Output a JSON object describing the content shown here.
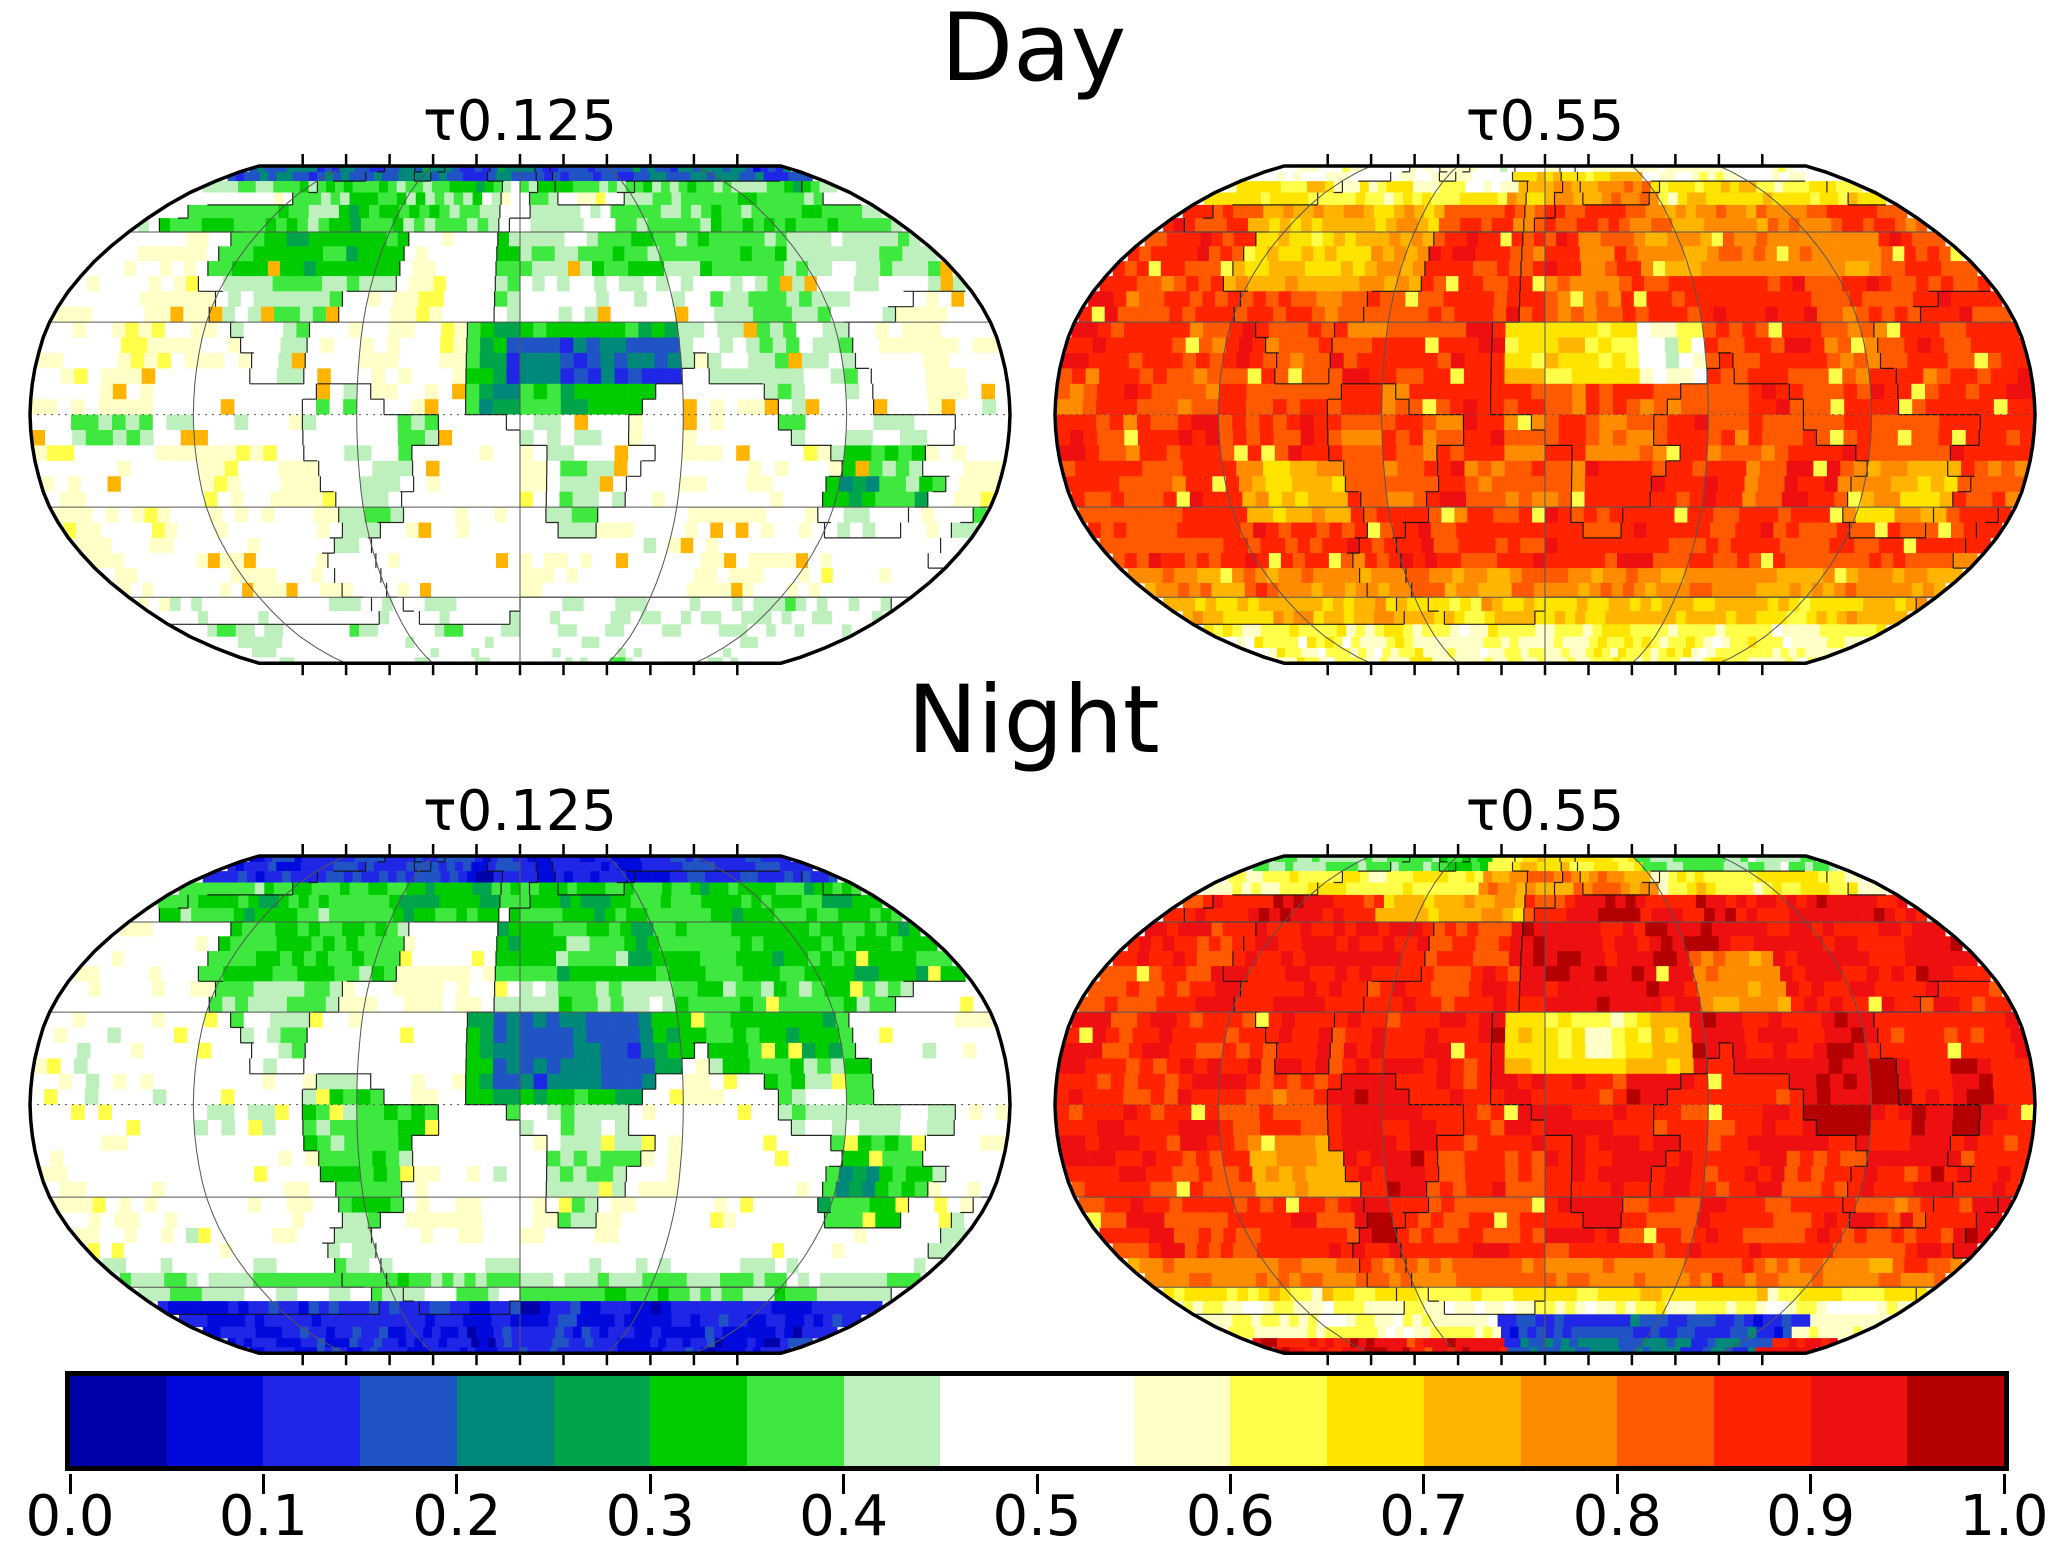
{
  "figure": {
    "day_title": "Day",
    "night_title": "Night"
  },
  "colorbar": {
    "ticks": [
      "0.0",
      "0.1",
      "0.2",
      "0.3",
      "0.4",
      "0.5",
      "0.6",
      "0.7",
      "0.8",
      "0.9",
      "1.0"
    ],
    "palette": [
      "#0000AA",
      "#000ADC",
      "#2026E6",
      "#2054C4",
      "#00887A",
      "#00A44B",
      "#00CC00",
      "#3EE83E",
      "#BEF0BE",
      "#FFFFFF",
      "#FFFFFF",
      "#FFFFC8",
      "#FFFF4A",
      "#FFE400",
      "#FFB400",
      "#FF8C00",
      "#FF5A00",
      "#FF2300",
      "#EE1010",
      "#B40000"
    ],
    "border_color": "#000000",
    "value_min": 0.0,
    "value_max": 1.0,
    "segment_width_value": 0.05
  },
  "chart_data": {
    "type": "heatmap",
    "projection": "robinson",
    "value_range": [
      0,
      1
    ],
    "grid": {
      "cols": 72,
      "rows": 36,
      "parallels": [
        -60,
        -30,
        0,
        30,
        60
      ],
      "meridians": [
        -120,
        -60,
        0,
        60,
        120
      ],
      "pole_tick_step_deg": 30
    },
    "robinson_x": [
      1.0,
      0.9986,
      0.9954,
      0.99,
      0.9822,
      0.973,
      0.96,
      0.9427,
      0.9216,
      0.8962,
      0.8679,
      0.835,
      0.7986,
      0.7597,
      0.7186,
      0.6732,
      0.6213,
      0.5722,
      0.5322
    ],
    "robinson_y": [
      0.0,
      0.062,
      0.124,
      0.186,
      0.248,
      0.31,
      0.372,
      0.434,
      0.4958,
      0.5571,
      0.6176,
      0.6769,
      0.7346,
      0.7903,
      0.8435,
      0.8936,
      0.9394,
      0.9761,
      1.0
    ],
    "land_mask": [
      "000000000110011100010000000000000000",
      "000000111111111110010000111111111100",
      "011111111111111110111111111111111111",
      "000001111111100001111111111111111111",
      "000001111111100001111111111111111111",
      "000000111110000001111111111111111000",
      "000000011100000011111111111111000000",
      "000000001100000011111111011111100000",
      "000000000011100011111110000111100000",
      "000000000011111000111100000011111100",
      "000000000011110000011110000000111000",
      "000000000001110000011100000001111100",
      "000000000001100000011000000000111001",
      "000000000011000000000000000000000001",
      "000000000011000000000000000000000000",
      "000000000001100000111111111111111111",
      "111111111111111111111111111111111111",
      "111111111111111111111111111111111111"
    ],
    "panels": [
      {
        "id": "day-tau0125",
        "row": "Day",
        "title": "τ0.125",
        "seed": 11,
        "ocean_base": 0.52,
        "land_base": 0.45,
        "jitter": 0.18,
        "speck": {
          "t": 0.966,
          "v": 0.71,
          "lat": [
            -58,
            50
          ]
        },
        "zones": [
          [
            82,
            90,
            -180,
            180,
            0,
            0.13,
            0.88
          ],
          [
            76,
            82,
            -180,
            180,
            0,
            0.3,
            0.55
          ],
          [
            45,
            80,
            -180,
            -18,
            1,
            0.33,
            0.7
          ],
          [
            45,
            80,
            -18,
            180,
            1,
            0.37,
            0.55
          ],
          [
            55,
            70,
            -5,
            40,
            1,
            0.48,
            0.5
          ],
          [
            0,
            30,
            -20,
            62,
            1,
            0.28,
            0.75
          ],
          [
            8,
            24,
            -5,
            58,
            1,
            0.14,
            0.8
          ],
          [
            5,
            38,
            62,
            125,
            1,
            0.38,
            0.55
          ],
          [
            15,
            45,
            -180,
            180,
            2,
            0.59,
            0.5
          ],
          [
            -42,
            -12,
            -180,
            180,
            2,
            0.57,
            0.45
          ],
          [
            -12,
            2,
            -180,
            -95,
            0,
            0.38,
            0.6
          ],
          [
            -30,
            -11,
            113,
            155,
            1,
            0.31,
            0.7
          ],
          [
            -27,
            -19,
            122,
            140,
            1,
            0.22,
            0.45
          ],
          [
            -58,
            -43,
            -180,
            180,
            0,
            0.55,
            0.35
          ],
          [
            -70,
            -58,
            -180,
            180,
            0,
            0.46,
            0.55
          ],
          [
            -90,
            -70,
            -180,
            180,
            0,
            0.47,
            0.7
          ]
        ]
      },
      {
        "id": "day-tau055",
        "row": "Day",
        "title": "τ0.55",
        "seed": 22,
        "ocean_base": 0.86,
        "land_base": 0.84,
        "jitter": 0.16,
        "speck": {
          "t": 0.968,
          "v": 0.63,
          "lat": [
            -55,
            60
          ]
        },
        "zones": [
          [
            80,
            90,
            -180,
            180,
            0,
            0.5,
            0.88
          ],
          [
            70,
            80,
            -180,
            180,
            0,
            0.55,
            0.65
          ],
          [
            70,
            85,
            -20,
            60,
            0,
            0.85,
            0.5
          ],
          [
            74,
            90,
            -75,
            -15,
            1,
            0.49,
            0.6
          ],
          [
            40,
            70,
            -140,
            -50,
            1,
            0.66,
            0.6
          ],
          [
            45,
            70,
            40,
            140,
            1,
            0.7,
            0.5
          ],
          [
            50,
            68,
            -10,
            40,
            2,
            0.8,
            0.4
          ],
          [
            12,
            32,
            -15,
            35,
            1,
            0.6,
            0.65
          ],
          [
            12,
            30,
            35,
            60,
            1,
            0.47,
            0.7
          ],
          [
            14,
            26,
            44,
            56,
            1,
            0.33,
            0.45
          ],
          [
            25,
            45,
            -75,
            -30,
            2,
            0.73,
            0.4
          ],
          [
            -35,
            -15,
            -115,
            -75,
            2,
            0.63,
            0.55
          ],
          [
            -35,
            -14,
            110,
            157,
            0,
            0.62,
            0.5
          ],
          [
            -15,
            10,
            90,
            165,
            0,
            0.92,
            0.5
          ],
          [
            -62,
            -48,
            -180,
            180,
            0,
            0.7,
            0.55
          ],
          [
            -72,
            -62,
            -180,
            180,
            0,
            0.58,
            0.55
          ],
          [
            -90,
            -72,
            -180,
            180,
            0,
            0.53,
            0.75
          ]
        ]
      },
      {
        "id": "night-tau0125",
        "row": "Night",
        "title": "τ0.125",
        "seed": 33,
        "ocean_base": 0.51,
        "land_base": 0.42,
        "jitter": 0.15,
        "speck": {
          "t": 0.97,
          "v": 0.62,
          "lat": [
            -50,
            50
          ]
        },
        "zones": [
          [
            76,
            90,
            -180,
            180,
            0,
            0.08,
            0.9
          ],
          [
            66,
            76,
            -180,
            180,
            0,
            0.28,
            0.6
          ],
          [
            40,
            70,
            -180,
            180,
            1,
            0.32,
            0.72
          ],
          [
            -2,
            32,
            -20,
            62,
            1,
            0.27,
            0.78
          ],
          [
            6,
            28,
            -8,
            52,
            1,
            0.15,
            0.75
          ],
          [
            5,
            48,
            62,
            130,
            1,
            0.33,
            0.68
          ],
          [
            -35,
            5,
            -82,
            -34,
            1,
            0.33,
            0.7
          ],
          [
            -40,
            -12,
            113,
            155,
            1,
            0.3,
            0.7
          ],
          [
            -30,
            -21,
            120,
            136,
            1,
            0.2,
            0.5
          ],
          [
            25,
            45,
            -180,
            180,
            2,
            0.55,
            0.3
          ],
          [
            -45,
            -25,
            -180,
            180,
            2,
            0.54,
            0.28
          ],
          [
            -8,
            4,
            -180,
            -90,
            0,
            0.43,
            0.5
          ],
          [
            -60,
            -50,
            -180,
            180,
            0,
            0.42,
            0.45
          ],
          [
            -63,
            -57,
            -180,
            180,
            0,
            0.34,
            0.5
          ],
          [
            -90,
            -63,
            -180,
            180,
            0,
            0.07,
            0.9
          ]
        ]
      },
      {
        "id": "night-tau055",
        "row": "Night",
        "title": "τ0.55",
        "seed": 44,
        "ocean_base": 0.87,
        "land_base": 0.91,
        "jitter": 0.14,
        "speck": {
          "t": 0.975,
          "v": 0.62,
          "lat": [
            -45,
            45
          ]
        },
        "zones": [
          [
            80,
            90,
            -180,
            180,
            0,
            0.33,
            0.85
          ],
          [
            82,
            90,
            -70,
            -20,
            0,
            0.25,
            0.5
          ],
          [
            70,
            80,
            -180,
            180,
            0,
            0.47,
            0.6
          ],
          [
            62,
            72,
            -80,
            -10,
            0,
            0.55,
            0.5
          ],
          [
            68,
            90,
            -35,
            60,
            0,
            0.88,
            0.55
          ],
          [
            40,
            65,
            -10,
            95,
            1,
            0.93,
            0.5
          ],
          [
            10,
            30,
            -15,
            55,
            1,
            0.6,
            0.7
          ],
          [
            17,
            28,
            -2,
            42,
            1,
            0.53,
            0.4
          ],
          [
            28,
            48,
            60,
            95,
            1,
            0.62,
            0.5
          ],
          [
            -10,
            15,
            95,
            165,
            0,
            0.95,
            0.55
          ],
          [
            -25,
            -5,
            -180,
            -140,
            0,
            0.92,
            0.4
          ],
          [
            -30,
            -8,
            -112,
            -72,
            2,
            0.68,
            0.55
          ],
          [
            -6,
            6,
            -130,
            -80,
            2,
            0.76,
            0.4
          ],
          [
            -35,
            -18,
            115,
            145,
            1,
            0.79,
            0.5
          ],
          [
            -58,
            -48,
            -180,
            180,
            0,
            0.72,
            0.5
          ],
          [
            -66,
            -58,
            -180,
            180,
            0,
            0.5,
            0.6
          ],
          [
            -78,
            -66,
            -180,
            180,
            0,
            0.37,
            0.6
          ],
          [
            -90,
            -70,
            -25,
            140,
            0,
            0.09,
            0.88
          ]
        ]
      }
    ]
  }
}
